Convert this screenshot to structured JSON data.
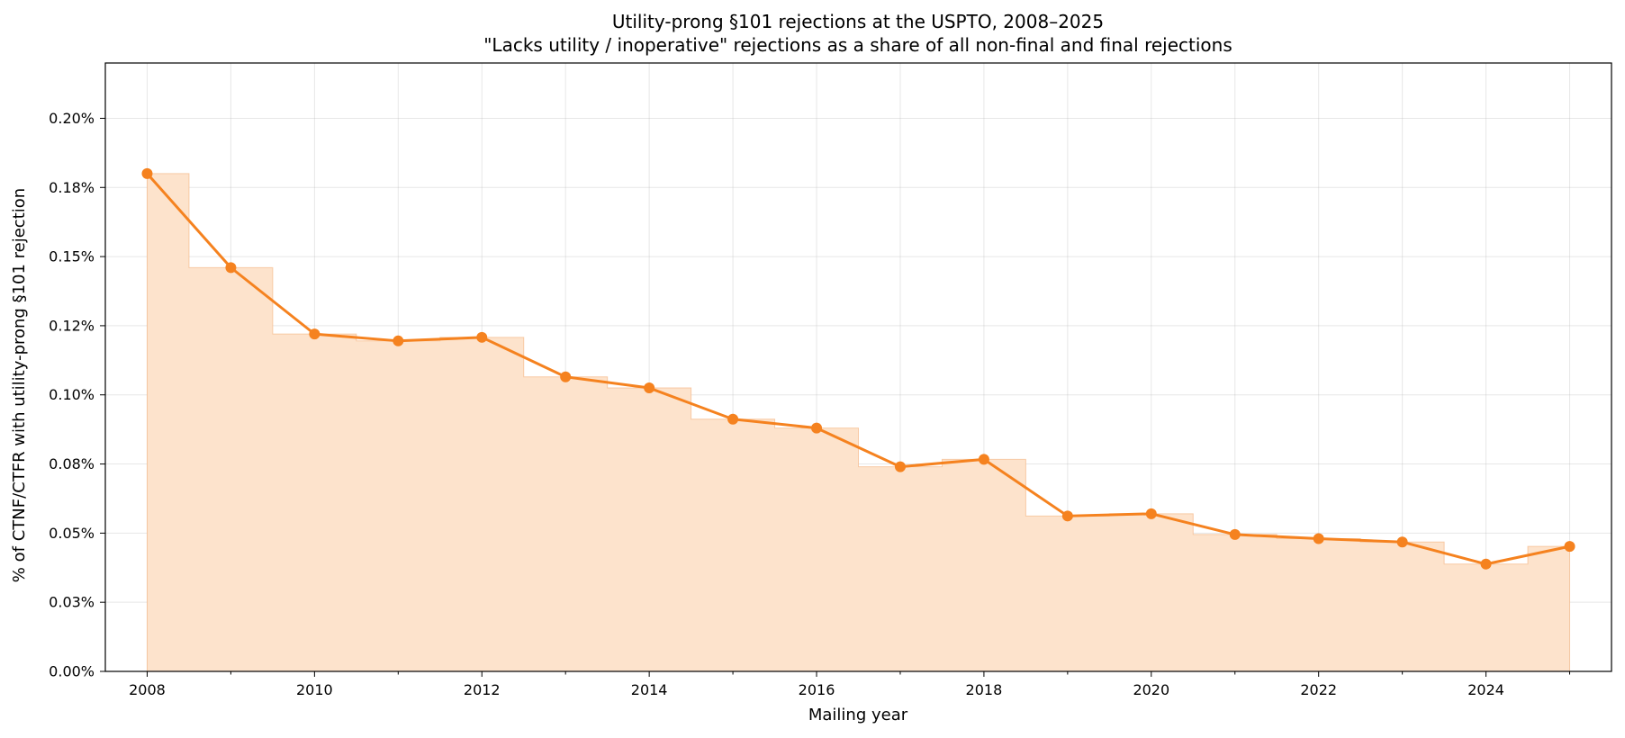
{
  "chart_data": {
    "type": "line",
    "title": "Utility-prong §101 rejections at the USPTO, 2008–2025",
    "subtitle": "\"Lacks utility / inoperative\" rejections as a share of all non-final and final rejections",
    "xlabel": "Mailing year",
    "ylabel": "% of CTNF/CTFR with utility-prong §101 rejection",
    "x": [
      2008,
      2009,
      2010,
      2011,
      2012,
      2013,
      2014,
      2015,
      2016,
      2017,
      2018,
      2019,
      2020,
      2021,
      2022,
      2023,
      2024,
      2025
    ],
    "series": [
      {
        "values": [
          0.18,
          0.146,
          0.122,
          0.1195,
          0.1208,
          0.1065,
          0.1025,
          0.0912,
          0.088,
          0.074,
          0.0767,
          0.0562,
          0.057,
          0.0495,
          0.048,
          0.0468,
          0.0388,
          0.0452
        ],
        "color": "#f5821f",
        "fill_color": "#fde3cc"
      }
    ],
    "xlim": [
      2007.5,
      2025.5
    ],
    "ylim": [
      0,
      0.22
    ],
    "x_ticks": [
      2008,
      2010,
      2012,
      2014,
      2016,
      2018,
      2020,
      2022,
      2024
    ],
    "x_tick_labels": [
      "2008",
      "2010",
      "2012",
      "2014",
      "2016",
      "2018",
      "2020",
      "2022",
      "2024"
    ],
    "x_minor_ticks": [
      2009,
      2011,
      2013,
      2015,
      2017,
      2019,
      2021,
      2023,
      2025
    ],
    "y_ticks": [
      0,
      0.025,
      0.05,
      0.075,
      0.1,
      0.125,
      0.15,
      0.175,
      0.2
    ],
    "y_tick_labels": [
      "0.00%",
      "0.03%",
      "0.05%",
      "0.08%",
      "0.10%",
      "0.12%",
      "0.15%",
      "0.18%",
      "0.20%"
    ],
    "grid": true
  }
}
